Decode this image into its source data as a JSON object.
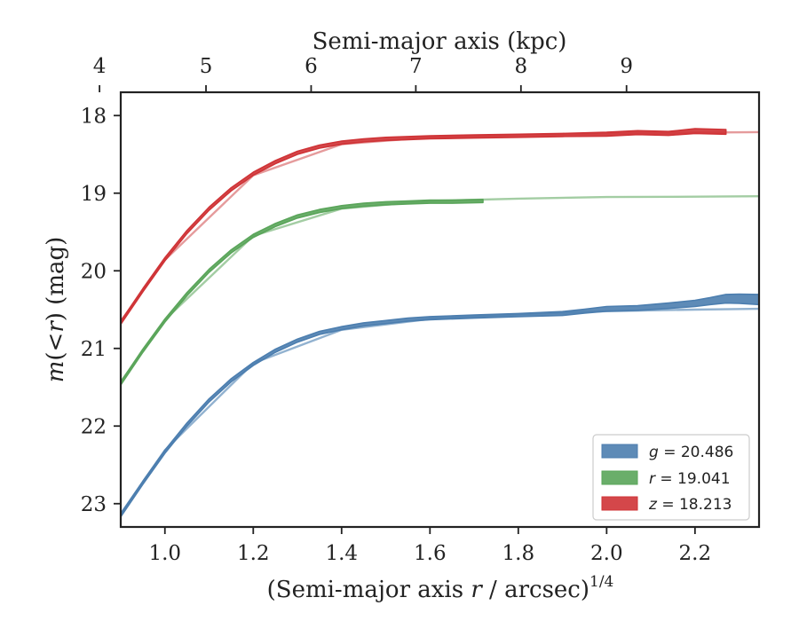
{
  "chart_data": {
    "type": "line",
    "xlabel_top": "Semi-major axis (kpc)",
    "xlabel_bottom": {
      "main": "(Semi-major axis ",
      "var": "r",
      "mid": " / arcsec)",
      "sup": "1/4"
    },
    "ylabel": {
      "var": "m",
      "open": "(",
      "lt": "<",
      "var2": "r",
      "close": ")",
      "unit": " (mag)"
    },
    "xlim": [
      0.9,
      2.345
    ],
    "ylim": [
      23.3,
      17.7
    ],
    "y_inverted": true,
    "x_ticks": [
      "1.0",
      "1.2",
      "1.4",
      "1.6",
      "1.8",
      "2.0",
      "2.2"
    ],
    "y_ticks": [
      "18",
      "19",
      "20",
      "21",
      "22",
      "23"
    ],
    "top_ticks": [
      "4",
      "5",
      "6",
      "7",
      "8",
      "9"
    ],
    "top_tick_positions_data": [
      0.852,
      1.093,
      1.331,
      1.568,
      1.806,
      2.045
    ],
    "legend": {
      "placement": "lower-right",
      "entries": [
        {
          "var": "g",
          "text": " = 20.486",
          "color": "#4c7eaf"
        },
        {
          "var": "r",
          "text": " = 19.041",
          "color": "#5aa55a"
        },
        {
          "var": "z",
          "text": " = 18.213",
          "color": "#cf3336"
        }
      ]
    },
    "series": [
      {
        "band": "g",
        "color": "#4c7eaf",
        "model_color": "#7fa5c8",
        "band_width": 0.05,
        "x": [
          0.9,
          0.95,
          1.0,
          1.05,
          1.1,
          1.15,
          1.2,
          1.25,
          1.3,
          1.35,
          1.4,
          1.45,
          1.5,
          1.55,
          1.6,
          1.7,
          1.8,
          1.9,
          1.95,
          2.0,
          2.07,
          2.14,
          2.2,
          2.235,
          2.27,
          2.3,
          2.345
        ],
        "y": [
          23.15,
          22.73,
          22.33,
          21.98,
          21.67,
          21.41,
          21.2,
          21.03,
          20.9,
          20.8,
          20.74,
          20.69,
          20.66,
          20.63,
          20.61,
          20.59,
          20.57,
          20.55,
          20.52,
          20.49,
          20.48,
          20.45,
          20.42,
          20.39,
          20.36,
          20.36,
          20.37
        ],
        "band_widths": [
          0.04,
          0.04,
          0.04,
          0.04,
          0.04,
          0.04,
          0.04,
          0.04,
          0.04,
          0.04,
          0.04,
          0.04,
          0.04,
          0.04,
          0.04,
          0.04,
          0.04,
          0.05,
          0.05,
          0.06,
          0.06,
          0.07,
          0.08,
          0.09,
          0.11,
          0.12,
          0.13
        ],
        "model_x": [
          0.9,
          1.0,
          1.2,
          1.4,
          1.6,
          1.8,
          2.0,
          2.2,
          2.345
        ],
        "model_y": [
          23.13,
          22.31,
          21.19,
          20.76,
          20.62,
          20.56,
          20.52,
          20.5,
          20.49
        ]
      },
      {
        "band": "r",
        "color": "#5aa55a",
        "model_color": "#93c493",
        "x": [
          0.9,
          0.95,
          1.0,
          1.05,
          1.1,
          1.15,
          1.2,
          1.25,
          1.3,
          1.35,
          1.4,
          1.45,
          1.5,
          1.55,
          1.6,
          1.65,
          1.72
        ],
        "y": [
          21.45,
          21.03,
          20.64,
          20.3,
          20.0,
          19.75,
          19.55,
          19.41,
          19.3,
          19.23,
          19.18,
          19.15,
          19.13,
          19.12,
          19.11,
          19.11,
          19.1
        ],
        "band_widths": [
          0.04,
          0.04,
          0.04,
          0.04,
          0.04,
          0.04,
          0.04,
          0.04,
          0.04,
          0.04,
          0.04,
          0.04,
          0.04,
          0.04,
          0.04,
          0.04,
          0.04
        ],
        "model_x": [
          0.9,
          1.0,
          1.2,
          1.4,
          1.6,
          1.8,
          2.0,
          2.2,
          2.345
        ],
        "model_y": [
          21.43,
          20.63,
          19.55,
          19.2,
          19.1,
          19.07,
          19.05,
          19.045,
          19.04
        ]
      },
      {
        "band": "z",
        "color": "#cf3336",
        "model_color": "#e08a8b",
        "x": [
          0.9,
          0.95,
          1.0,
          1.05,
          1.1,
          1.15,
          1.2,
          1.25,
          1.3,
          1.35,
          1.4,
          1.45,
          1.5,
          1.55,
          1.6,
          1.7,
          1.8,
          1.9,
          2.0,
          2.07,
          2.14,
          2.2,
          2.27
        ],
        "y": [
          20.67,
          20.25,
          19.85,
          19.5,
          19.2,
          18.95,
          18.75,
          18.6,
          18.48,
          18.4,
          18.35,
          18.32,
          18.3,
          18.29,
          18.28,
          18.27,
          18.26,
          18.25,
          18.24,
          18.22,
          18.23,
          18.2,
          18.21
        ],
        "band_widths": [
          0.04,
          0.04,
          0.04,
          0.04,
          0.04,
          0.04,
          0.04,
          0.04,
          0.04,
          0.04,
          0.04,
          0.04,
          0.04,
          0.04,
          0.04,
          0.04,
          0.04,
          0.04,
          0.05,
          0.05,
          0.05,
          0.06,
          0.06
        ],
        "model_x": [
          0.9,
          1.0,
          1.2,
          1.4,
          1.6,
          1.8,
          2.0,
          2.2,
          2.345
        ],
        "model_y": [
          20.65,
          19.86,
          18.77,
          18.37,
          18.28,
          18.25,
          18.23,
          18.22,
          18.213
        ]
      }
    ]
  }
}
